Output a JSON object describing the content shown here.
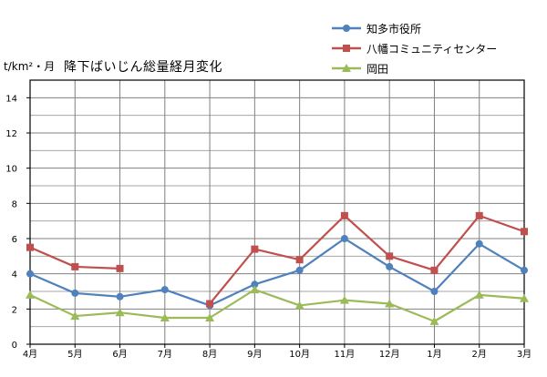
{
  "chart_data": {
    "type": "line",
    "title": "降下ばいじん総量経月変化",
    "ylabel": "t/km²・月",
    "xlabel": "",
    "ylim": [
      0,
      15
    ],
    "yticks": [
      0,
      2,
      4,
      6,
      8,
      10,
      12,
      14
    ],
    "grid": true,
    "legend_position": "top-right",
    "categories": [
      "4月",
      "5月",
      "6月",
      "7月",
      "8月",
      "9月",
      "10月",
      "11月",
      "12月",
      "1月",
      "2月",
      "3月"
    ],
    "series": [
      {
        "name": "知多市役所",
        "color": "#4f81bd",
        "marker": "circle",
        "values": [
          4.0,
          2.9,
          2.7,
          3.1,
          2.2,
          3.4,
          4.2,
          6.0,
          4.4,
          3.0,
          5.7,
          4.2
        ]
      },
      {
        "name": "八幡コミュニティセンター",
        "color": "#c0504d",
        "marker": "square",
        "values": [
          5.5,
          4.4,
          4.3,
          null,
          2.3,
          5.4,
          4.8,
          7.3,
          5.0,
          4.2,
          7.3,
          6.4
        ]
      },
      {
        "name": "岡田",
        "color": "#9bbb59",
        "marker": "triangle",
        "values": [
          2.8,
          1.6,
          1.8,
          1.5,
          1.5,
          3.1,
          2.2,
          2.5,
          2.3,
          1.3,
          2.8,
          2.6
        ]
      }
    ]
  },
  "header": {
    "unit": "t/km²・月",
    "title": "降下ばいじん総量経月変化"
  },
  "legend": [
    {
      "label": "知多市役所"
    },
    {
      "label": "八幡コミュニティセンター"
    },
    {
      "label": "岡田"
    }
  ]
}
